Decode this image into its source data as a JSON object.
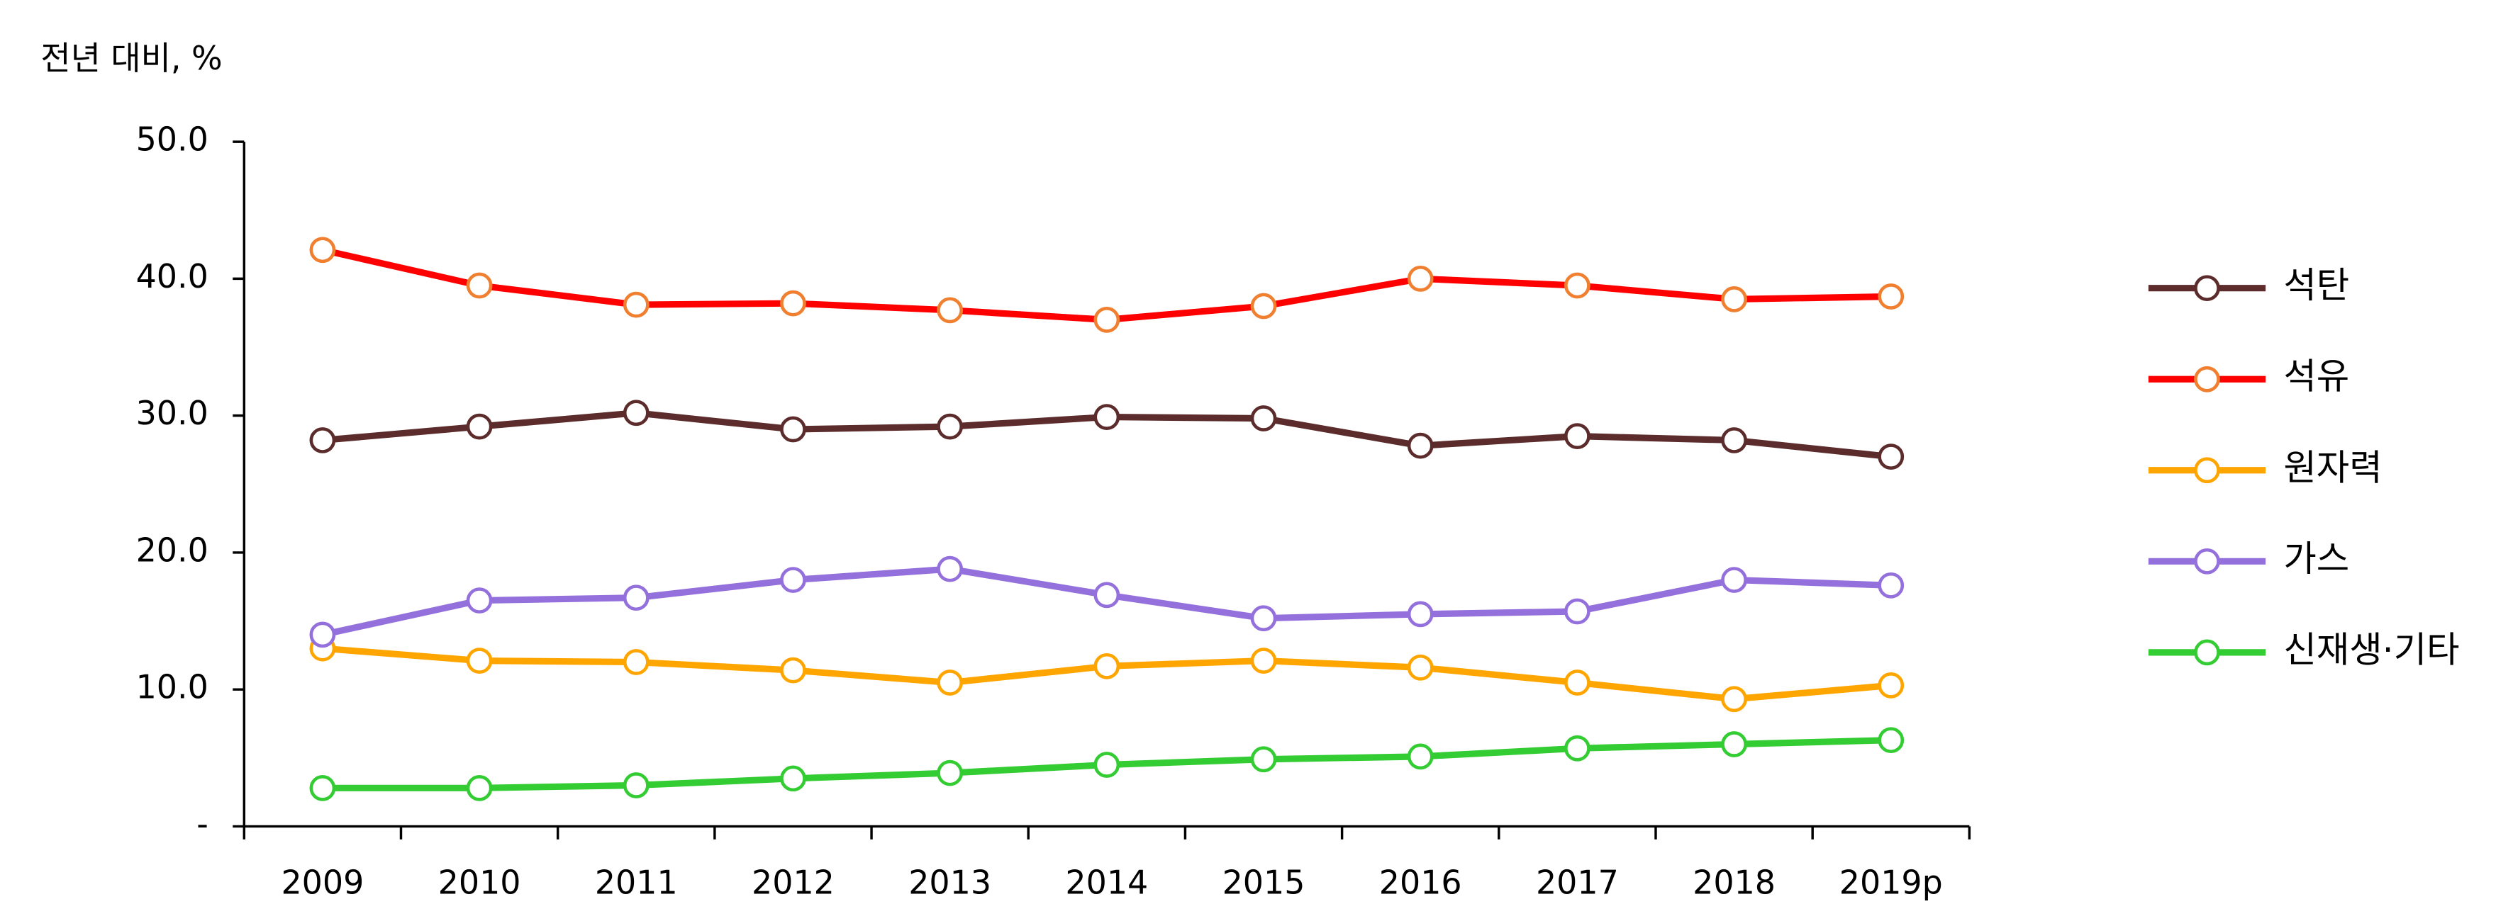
{
  "chart_data": {
    "type": "line",
    "y_axis_label": "전년 대비, %",
    "categories": [
      "2009",
      "2010",
      "2011",
      "2012",
      "2013",
      "2014",
      "2015",
      "2016",
      "2017",
      "2018",
      "2019p"
    ],
    "ylim": [
      0,
      50
    ],
    "yticks": [
      {
        "value": 0,
        "label": "-"
      },
      {
        "value": 10,
        "label": "10.0"
      },
      {
        "value": 20,
        "label": "20.0"
      },
      {
        "value": 30,
        "label": "30.0"
      },
      {
        "value": 40,
        "label": "40.0"
      },
      {
        "value": 50,
        "label": "50.0"
      }
    ],
    "series": [
      {
        "name": "석탄",
        "color": "#5c2b2b",
        "marker_color": "#5c2b2b",
        "values": [
          28.2,
          29.2,
          30.2,
          29.0,
          29.2,
          29.9,
          29.8,
          27.8,
          28.5,
          28.2,
          27.0
        ]
      },
      {
        "name": "석유",
        "color": "#ff0000",
        "marker_color": "#f07f30",
        "values": [
          42.1,
          39.5,
          38.1,
          38.2,
          37.7,
          37.0,
          38.0,
          40.0,
          39.5,
          38.5,
          38.7
        ]
      },
      {
        "name": "원자력",
        "color": "#ffa500",
        "marker_color": "#ffa500",
        "values": [
          13.0,
          12.1,
          12.0,
          11.4,
          10.5,
          11.7,
          12.1,
          11.6,
          10.5,
          9.3,
          10.3
        ]
      },
      {
        "name": "가스",
        "color": "#9370db",
        "marker_color": "#9370db",
        "values": [
          14.0,
          16.5,
          16.7,
          18.0,
          18.8,
          16.9,
          15.2,
          15.5,
          15.7,
          18.0,
          17.6
        ]
      },
      {
        "name": "신재생·기타",
        "color": "#33cc33",
        "marker_color": "#33cc33",
        "values": [
          2.8,
          2.8,
          3.0,
          3.5,
          3.9,
          4.5,
          4.9,
          5.1,
          5.7,
          6.0,
          6.3
        ]
      }
    ],
    "legend": "right"
  }
}
